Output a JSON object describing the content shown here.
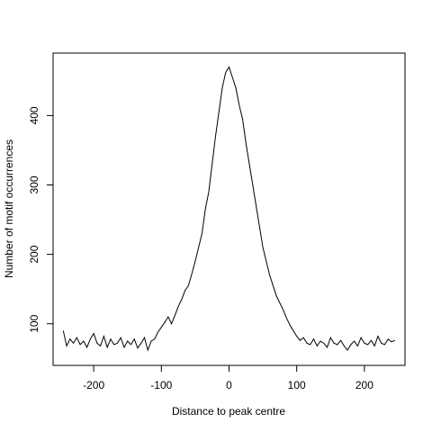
{
  "chart_data": {
    "type": "line",
    "title": "",
    "xlabel": "Distance to peak centre",
    "ylabel": "Number of motif occurrences",
    "xlim": [
      -260,
      260
    ],
    "ylim": [
      40,
      490
    ],
    "xticks": [
      -200,
      -100,
      0,
      100,
      200
    ],
    "xtick_labels": [
      "-200",
      "-100",
      "0",
      "100",
      "200"
    ],
    "yticks": [
      100,
      200,
      300,
      400
    ],
    "ytick_labels": [
      "100",
      "200",
      "300",
      "400"
    ],
    "grid": false,
    "legend": "none",
    "line_color": "#000000",
    "series": [
      {
        "x": [
          -245,
          -240,
          -235,
          -230,
          -225,
          -220,
          -215,
          -210,
          -205,
          -200,
          -195,
          -190,
          -185,
          -180,
          -175,
          -170,
          -165,
          -160,
          -155,
          -150,
          -145,
          -140,
          -135,
          -130,
          -125,
          -120,
          -115,
          -110,
          -105,
          -100,
          -95,
          -90,
          -85,
          -80,
          -75,
          -70,
          -65,
          -60,
          -55,
          -50,
          -45,
          -40,
          -35,
          -30,
          -25,
          -20,
          -15,
          -10,
          -5,
          0,
          5,
          10,
          15,
          20,
          25,
          30,
          35,
          40,
          45,
          50,
          55,
          60,
          65,
          70,
          75,
          80,
          85,
          90,
          95,
          100,
          105,
          110,
          115,
          120,
          125,
          130,
          135,
          140,
          145,
          150,
          155,
          160,
          165,
          170,
          175,
          180,
          185,
          190,
          195,
          200,
          205,
          210,
          215,
          220,
          225,
          230,
          235,
          240,
          245
        ],
        "values": [
          90,
          68,
          78,
          72,
          80,
          70,
          75,
          66,
          78,
          86,
          72,
          68,
          82,
          66,
          78,
          70,
          72,
          80,
          66,
          75,
          70,
          78,
          65,
          72,
          80,
          62,
          75,
          78,
          88,
          95,
          102,
          110,
          100,
          112,
          125,
          135,
          148,
          155,
          172,
          190,
          210,
          230,
          265,
          290,
          330,
          370,
          405,
          440,
          462,
          470,
          455,
          440,
          415,
          395,
          360,
          330,
          300,
          270,
          240,
          210,
          190,
          170,
          155,
          140,
          130,
          120,
          108,
          98,
          90,
          82,
          76,
          80,
          72,
          70,
          78,
          68,
          75,
          72,
          66,
          80,
          72,
          70,
          76,
          68,
          62,
          70,
          75,
          68,
          80,
          72,
          70,
          76,
          68,
          82,
          72,
          70,
          78,
          74,
          76
        ]
      }
    ]
  }
}
